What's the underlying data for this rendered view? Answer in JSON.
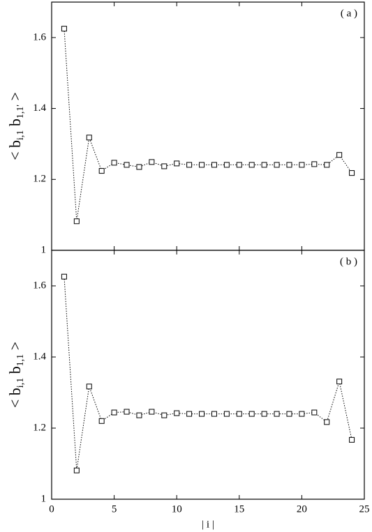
{
  "chart_data": [
    {
      "type": "line",
      "annotation": "( a )",
      "ylabel_parts": [
        "< b",
        "i,1",
        " b",
        "1,1'",
        " >"
      ],
      "x": [
        1,
        2,
        3,
        4,
        5,
        6,
        7,
        8,
        9,
        10,
        11,
        12,
        13,
        14,
        15,
        16,
        17,
        18,
        19,
        20,
        21,
        22,
        23,
        24
      ],
      "series": [
        {
          "color": "#000000",
          "values": [
            1.625,
            1.082,
            1.318,
            1.224,
            1.247,
            1.241,
            1.235,
            1.249,
            1.237,
            1.245,
            1.241,
            1.241,
            1.241,
            1.241,
            1.241,
            1.241,
            1.241,
            1.241,
            1.241,
            1.241,
            1.243,
            1.241,
            1.269,
            1.218
          ]
        }
      ],
      "xlim": [
        0,
        25
      ],
      "xticks": [
        0,
        5,
        10,
        15,
        20,
        25
      ],
      "ylim": [
        1,
        1.7
      ],
      "yticks": [
        1,
        1.2,
        1.4,
        1.6
      ]
    },
    {
      "type": "line",
      "annotation": "( b )",
      "ylabel_parts": [
        "< b",
        "i,1",
        " b",
        "1,1",
        " >"
      ],
      "xlabel": "| i |",
      "x": [
        1,
        2,
        3,
        4,
        5,
        6,
        7,
        8,
        9,
        10,
        11,
        12,
        13,
        14,
        15,
        16,
        17,
        18,
        19,
        20,
        21,
        22,
        23,
        24
      ],
      "series": [
        {
          "color": "#000000",
          "values": [
            1.626,
            1.081,
            1.317,
            1.22,
            1.244,
            1.246,
            1.236,
            1.246,
            1.236,
            1.242,
            1.24,
            1.24,
            1.24,
            1.24,
            1.24,
            1.24,
            1.24,
            1.24,
            1.24,
            1.24,
            1.244,
            1.217,
            1.331,
            1.167
          ]
        }
      ],
      "xlim": [
        0,
        25
      ],
      "xticks": [
        0,
        5,
        10,
        15,
        20,
        25
      ],
      "ylim": [
        1,
        1.7
      ],
      "yticks": [
        1,
        1.2,
        1.4,
        1.6
      ]
    }
  ]
}
